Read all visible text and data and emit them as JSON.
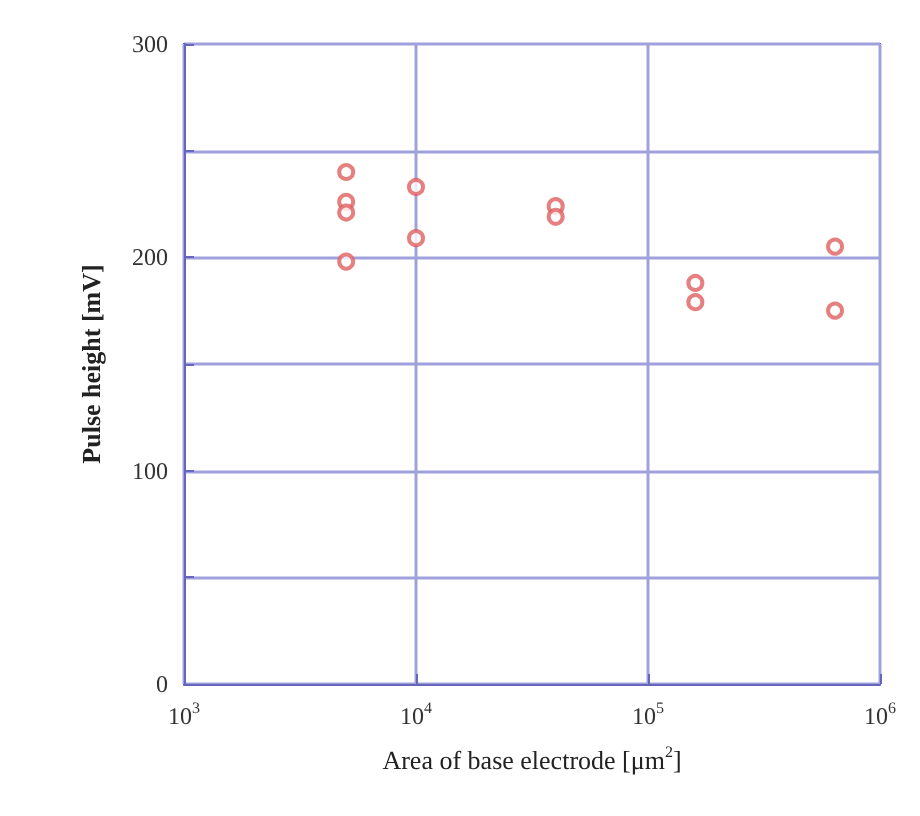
{
  "chart_data": {
    "type": "scatter",
    "xlabel": "Area of base electrode [μm$^{2}$]",
    "ylabel": "Pulse height [mV]",
    "x": [
      5000,
      5000,
      5000,
      5000,
      10000,
      10000,
      40000,
      40000,
      160000,
      160000,
      640000,
      640000
    ],
    "values": [
      240,
      226,
      221,
      198,
      233,
      209,
      224,
      219,
      188,
      179,
      205,
      175
    ],
    "color": "#e06060",
    "marker": "circle",
    "log": "x",
    "grid": true,
    "xlim": [
      1000,
      1000000
    ],
    "xticks": [
      {
        "value": 1000,
        "label": "10$^{3}$"
      },
      {
        "value": 10000,
        "label": "10$^{4}$"
      },
      {
        "value": 100000,
        "label": "10$^{5}$"
      },
      {
        "value": 1000000,
        "label": "10$^{6}$"
      }
    ],
    "ylim": [
      0,
      300
    ],
    "yticks": [
      0,
      {
        "value": 50,
        "label": null
      },
      100,
      {
        "value": 150,
        "label": null
      },
      200,
      {
        "value": 250,
        "label": null
      },
      300
    ]
  }
}
